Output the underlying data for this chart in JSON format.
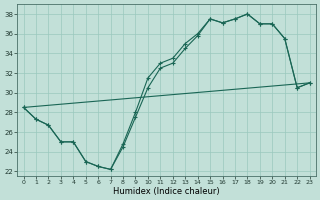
{
  "xlabel": "Humidex (Indice chaleur)",
  "xlim": [
    -0.5,
    23.5
  ],
  "ylim": [
    21.5,
    39.0
  ],
  "xticks": [
    0,
    1,
    2,
    3,
    4,
    5,
    6,
    7,
    8,
    9,
    10,
    11,
    12,
    13,
    14,
    15,
    16,
    17,
    18,
    19,
    20,
    21,
    22,
    23
  ],
  "yticks": [
    22,
    24,
    26,
    28,
    30,
    32,
    34,
    36,
    38
  ],
  "background_color": "#c2e0d8",
  "grid_color": "#9ac8be",
  "line_color": "#1a6655",
  "curve1_x": [
    0,
    1,
    2,
    3,
    4,
    5,
    6,
    7,
    8,
    9,
    10,
    11,
    12,
    13,
    14,
    15,
    16,
    17,
    18,
    19,
    20,
    21,
    22,
    23
  ],
  "curve1_y": [
    28.5,
    27.3,
    26.7,
    25.0,
    25.0,
    23.0,
    22.5,
    22.2,
    24.5,
    27.5,
    30.5,
    32.5,
    33.0,
    34.5,
    35.8,
    37.5,
    37.1,
    37.5,
    38.0,
    37.0,
    37.0,
    35.5,
    30.5,
    31.0
  ],
  "curve2_x": [
    0,
    1,
    2,
    3,
    4,
    5,
    6,
    7,
    8,
    9,
    10,
    11,
    12,
    13,
    14,
    15,
    16,
    17,
    18,
    19,
    20,
    21,
    22,
    23
  ],
  "curve2_y": [
    28.5,
    27.3,
    26.7,
    25.0,
    25.0,
    23.0,
    22.5,
    22.2,
    24.8,
    28.0,
    31.5,
    33.0,
    33.5,
    35.0,
    36.0,
    37.5,
    37.1,
    37.5,
    38.0,
    37.0,
    37.0,
    35.5,
    30.5,
    31.0
  ],
  "curve3_x": [
    0,
    23
  ],
  "curve3_y": [
    28.5,
    31.0
  ]
}
